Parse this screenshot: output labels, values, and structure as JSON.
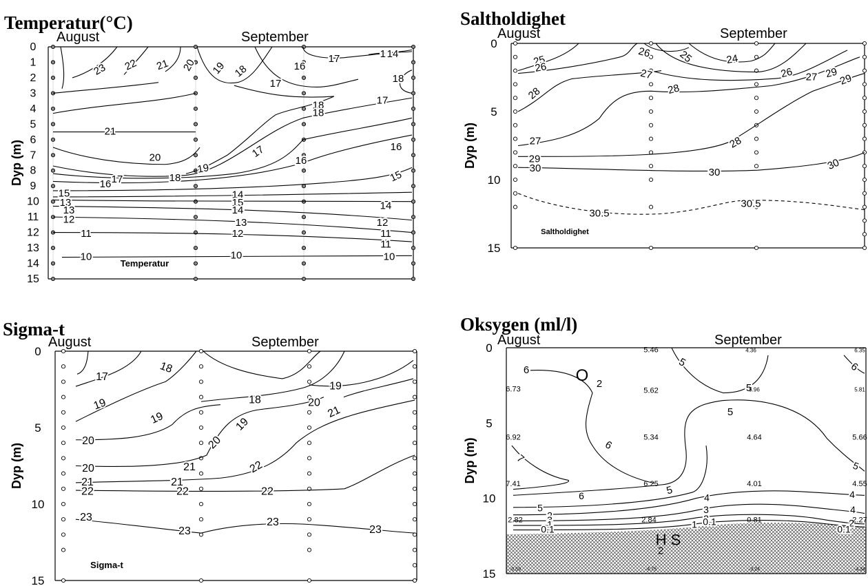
{
  "colors": {
    "line": "#000000",
    "background": "#ffffff",
    "hatch": "#333333"
  },
  "chart_data": [
    {
      "type": "contour",
      "title": "Temperatur(°C)",
      "ylabel": "Dyp (m)",
      "xlabel": "",
      "ylim": [
        15,
        0
      ],
      "month_labels": [
        "August",
        "September"
      ],
      "yticks": [
        "0",
        "1",
        "2",
        "3",
        "4",
        "5",
        "6",
        "7",
        "8",
        "9",
        "10",
        "11",
        "12",
        "13",
        "14",
        "15"
      ],
      "annotation": "Temperatur",
      "stations": 4,
      "contour_labels": [
        "23",
        "22",
        "21",
        "20",
        "19",
        "18",
        "17",
        "16",
        "15",
        "14",
        "18",
        "17",
        "18",
        "17",
        "21",
        "20",
        "19",
        "18",
        "17",
        "16",
        "16",
        "17",
        "18",
        "16",
        "15",
        "15",
        "14",
        "13",
        "15",
        "14",
        "13",
        "14",
        "12",
        "12",
        "13",
        "11",
        "11",
        "12",
        "11",
        "10",
        "10",
        "10"
      ]
    },
    {
      "type": "contour",
      "title": "Saltholdighet",
      "ylabel": "Dyp (m)",
      "xlabel": "",
      "ylim": [
        15,
        0
      ],
      "month_labels": [
        "August",
        "September"
      ],
      "yticks": [
        "0",
        "5",
        "10",
        "15"
      ],
      "annotation": "Saltholdighet",
      "stations": 4,
      "contour_labels": [
        "25",
        "26",
        "26",
        "25",
        "24",
        "27",
        "26",
        "27",
        "28",
        "28",
        "29",
        "27",
        "28",
        "29",
        "29",
        "30",
        "30",
        "30",
        "30.5",
        "30.5"
      ]
    },
    {
      "type": "contour",
      "title": "Sigma-t",
      "ylabel": "Dyp (m)",
      "xlabel": "",
      "ylim": [
        15,
        0
      ],
      "month_labels": [
        "August",
        "September"
      ],
      "yticks": [
        "0",
        "5",
        "10",
        "15"
      ],
      "annotation": "Sigma-t",
      "stations": 4,
      "contour_labels": [
        "17",
        "18",
        "19",
        "18",
        "19",
        "19",
        "20",
        "20",
        "21",
        "19",
        "20",
        "21",
        "20",
        "21",
        "22",
        "21",
        "22",
        "22",
        "22",
        "23",
        "23",
        "23",
        "23"
      ]
    },
    {
      "type": "contour",
      "title": "Oksygen (ml/l)",
      "ylabel": "Dyp (m)",
      "xlabel": "",
      "ylim": [
        15,
        0
      ],
      "month_labels": [
        "August",
        "September"
      ],
      "yticks": [
        "0",
        "5",
        "10",
        "15"
      ],
      "annotation_o2": "O",
      "annotation_o2_sub": "2",
      "annotation_h2s": "H S",
      "annotation_h2s_sub": "2",
      "stations": 4,
      "contour_labels": [
        "6",
        "5",
        "5",
        "6",
        "5",
        "6",
        "7",
        "5",
        "5",
        "6",
        "4",
        "4",
        "5",
        "3",
        "3",
        "4",
        "2",
        "2",
        "3",
        "2",
        "1",
        "0.1",
        "1",
        "0.1",
        "0.1"
      ],
      "station_values": [
        "5.46",
        "4.36",
        "6.35",
        "6.73",
        "5.62",
        "5.96",
        "5.81",
        "6.92",
        "5.34",
        "4.64",
        "5.66",
        "7.41",
        "6.25",
        "4.01",
        "4.55",
        "2.82",
        "2.84",
        "0.81",
        "2.27",
        "-0.59",
        "-4.75",
        "-3.24",
        "-4.34"
      ]
    }
  ]
}
